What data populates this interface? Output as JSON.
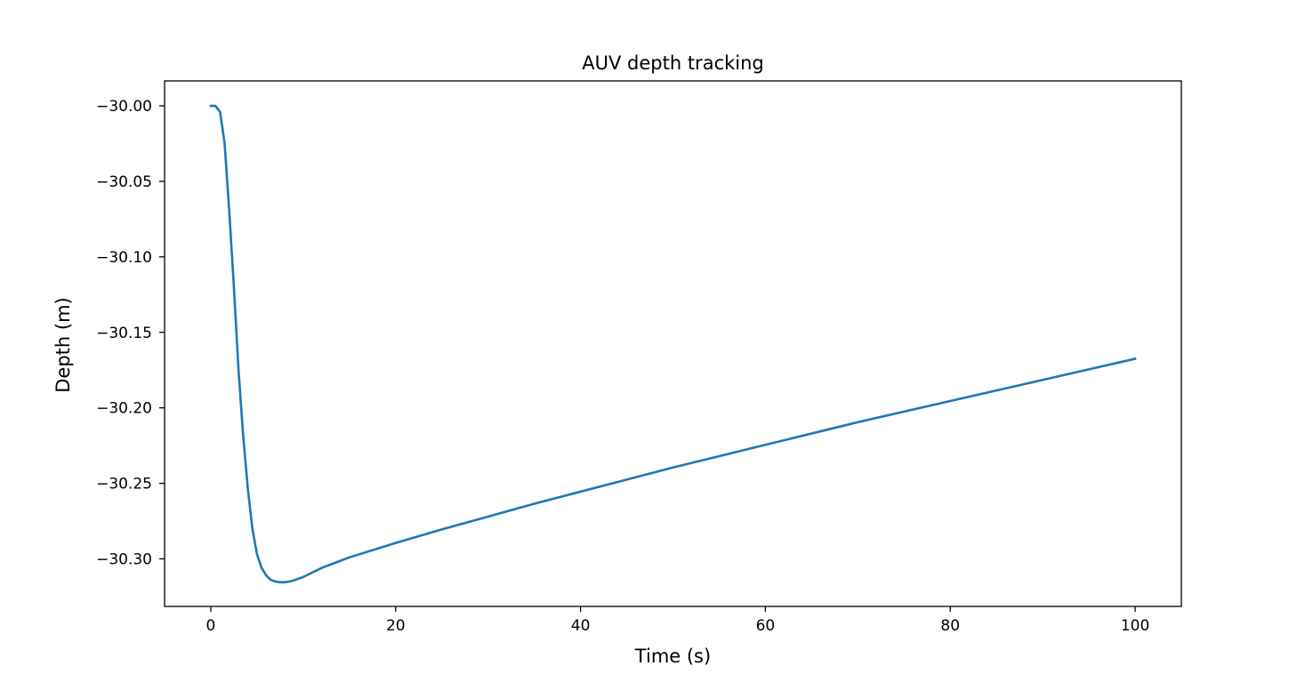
{
  "chart_data": {
    "type": "line",
    "title": "AUV depth tracking",
    "xlabel": "Time (s)",
    "ylabel": "Depth (m)",
    "xlim": [
      -5,
      105
    ],
    "ylim": [
      -30.3315,
      -29.9835
    ],
    "grid": false,
    "x_ticks": [
      0,
      20,
      40,
      60,
      80,
      100
    ],
    "x_tick_labels": [
      "0",
      "20",
      "40",
      "60",
      "80",
      "100"
    ],
    "y_ticks": [
      -30.0,
      -30.05,
      -30.1,
      -30.15,
      -30.2,
      -30.25,
      -30.3
    ],
    "y_tick_labels": [
      "−30.00",
      "−30.05",
      "−30.10",
      "−30.15",
      "−30.20",
      "−30.25",
      "−30.30"
    ],
    "series": [
      {
        "color": "#1f77b4",
        "x": [
          0,
          0.5,
          1,
          1.5,
          2,
          2.5,
          3,
          3.5,
          4,
          4.5,
          5,
          5.5,
          6,
          6.5,
          7,
          7.5,
          8,
          8.5,
          9,
          10,
          12,
          15,
          20,
          25,
          30,
          35,
          40,
          45,
          50,
          55,
          60,
          65,
          70,
          75,
          80,
          85,
          90,
          95,
          100
        ],
        "y": [
          -30.0,
          -30.0,
          -30.004,
          -30.025,
          -30.07,
          -30.12,
          -30.175,
          -30.218,
          -30.253,
          -30.28,
          -30.297,
          -30.306,
          -30.311,
          -30.314,
          -30.315,
          -30.3155,
          -30.3155,
          -30.315,
          -30.3142,
          -30.312,
          -30.306,
          -30.299,
          -30.2895,
          -30.2805,
          -30.272,
          -30.2635,
          -30.2555,
          -30.2475,
          -30.2395,
          -30.232,
          -30.2245,
          -30.217,
          -30.2095,
          -30.2025,
          -30.1955,
          -30.1885,
          -30.1815,
          -30.1745,
          -30.1675
        ]
      }
    ]
  }
}
